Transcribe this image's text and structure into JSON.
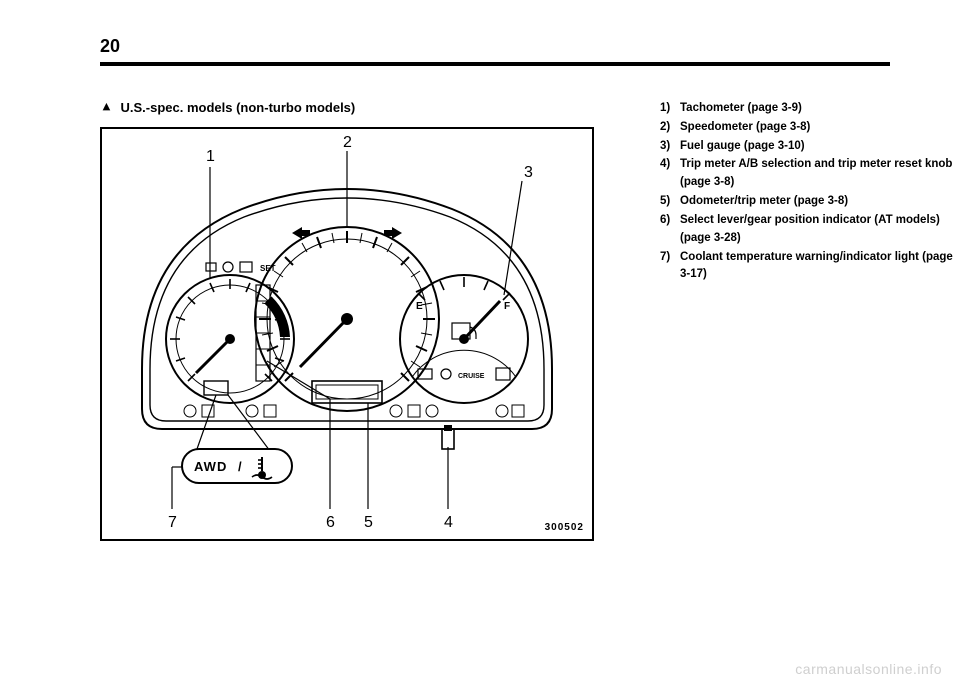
{
  "page_number": "20",
  "heading_marker": "▼",
  "heading_text": "U.S.-spec. models (non-turbo models)",
  "figure_code": "300502",
  "callouts": {
    "c1": "1",
    "c2": "2",
    "c3": "3",
    "c4": "4",
    "c5": "5",
    "c6": "6",
    "c7": "7"
  },
  "badge_text": "AWD / ",
  "legend": [
    {
      "n": "1)",
      "t": "Tachometer (page 3-9)"
    },
    {
      "n": "2)",
      "t": "Speedometer (page 3-8)"
    },
    {
      "n": "3)",
      "t": "Fuel gauge (page 3-10)"
    },
    {
      "n": "4)",
      "t": "Trip meter A/B selection and trip meter reset knob (page 3-8)"
    },
    {
      "n": "5)",
      "t": "Odometer/trip meter (page 3-8)"
    },
    {
      "n": "6)",
      "t": "Select lever/gear position indicator (AT models) (page 3-28)"
    },
    {
      "n": "7)",
      "t": "Coolant temperature warning/indicator light (page 3-17)"
    }
  ],
  "watermark": "carmanualsonline.info",
  "svg": {
    "stroke": "#000000",
    "stroke_thin": 1.4,
    "stroke_med": 2.0,
    "font_callout": 16,
    "font_small": 8
  }
}
